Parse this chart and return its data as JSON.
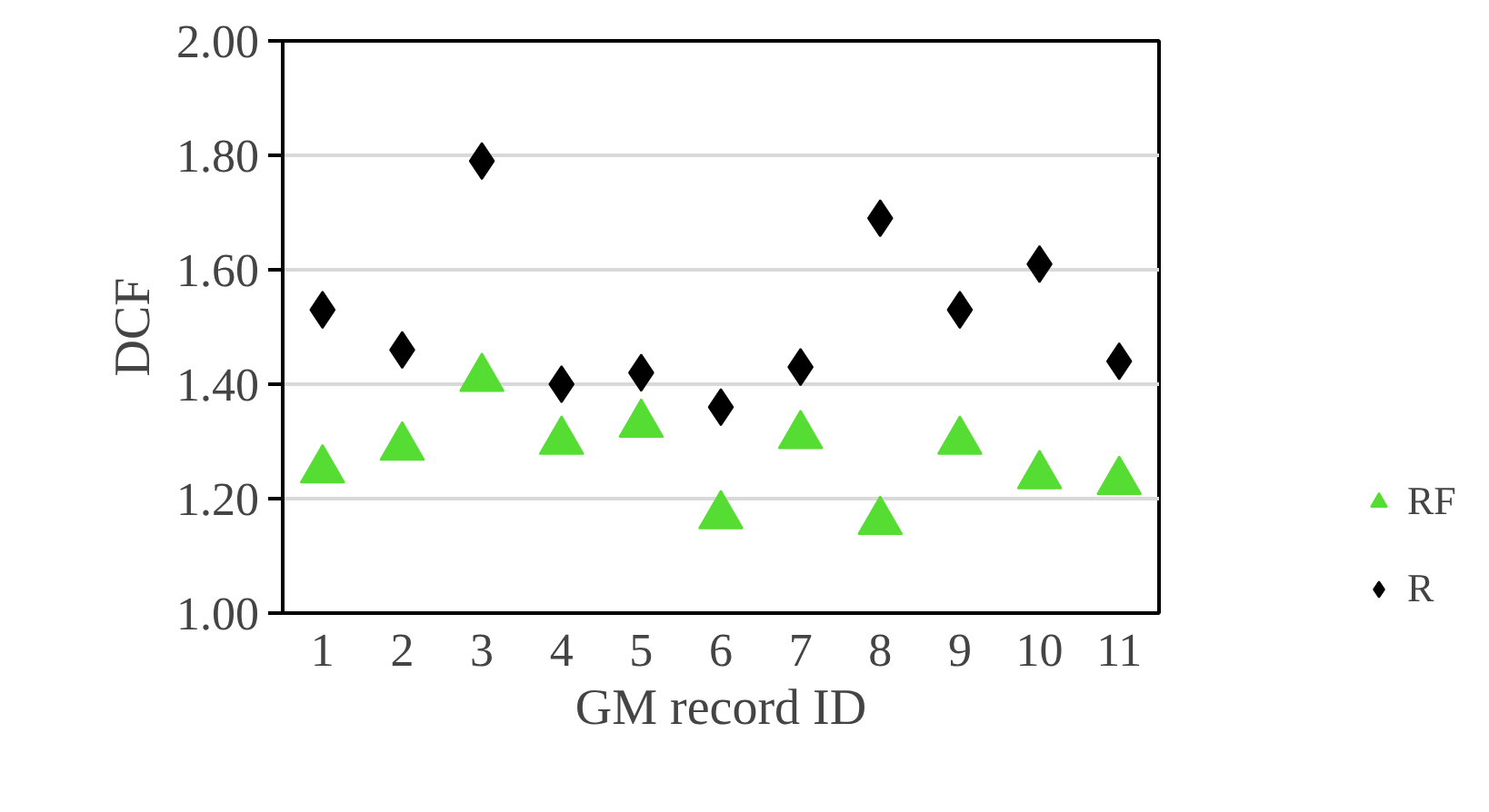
{
  "chart_data": {
    "type": "scatter",
    "xlabel": "GM record ID",
    "ylabel": "DCF",
    "categories": [
      "1",
      "2",
      "3",
      "4",
      "5",
      "6",
      "7",
      "8",
      "9",
      "10",
      "11"
    ],
    "series": [
      {
        "name": "RF",
        "color": "#55dd33",
        "marker": "triangle",
        "values": [
          1.25,
          1.29,
          1.41,
          1.3,
          1.33,
          1.17,
          1.31,
          1.16,
          1.3,
          1.24,
          1.23
        ]
      },
      {
        "name": "R",
        "color": "#000000",
        "marker": "diamond",
        "values": [
          1.53,
          1.46,
          1.79,
          1.4,
          1.42,
          1.36,
          1.43,
          1.69,
          1.53,
          1.61,
          1.44
        ]
      }
    ],
    "ylim": [
      1.0,
      2.0
    ],
    "yticks": [
      {
        "value": 1.0,
        "label": "1.00"
      },
      {
        "value": 1.2,
        "label": "1.20"
      },
      {
        "value": 1.4,
        "label": "1.40"
      },
      {
        "value": 1.6,
        "label": "1.60"
      },
      {
        "value": 1.8,
        "label": "1.80"
      },
      {
        "value": 2.0,
        "label": "2.00"
      }
    ],
    "grid": "y",
    "legend": "right"
  }
}
